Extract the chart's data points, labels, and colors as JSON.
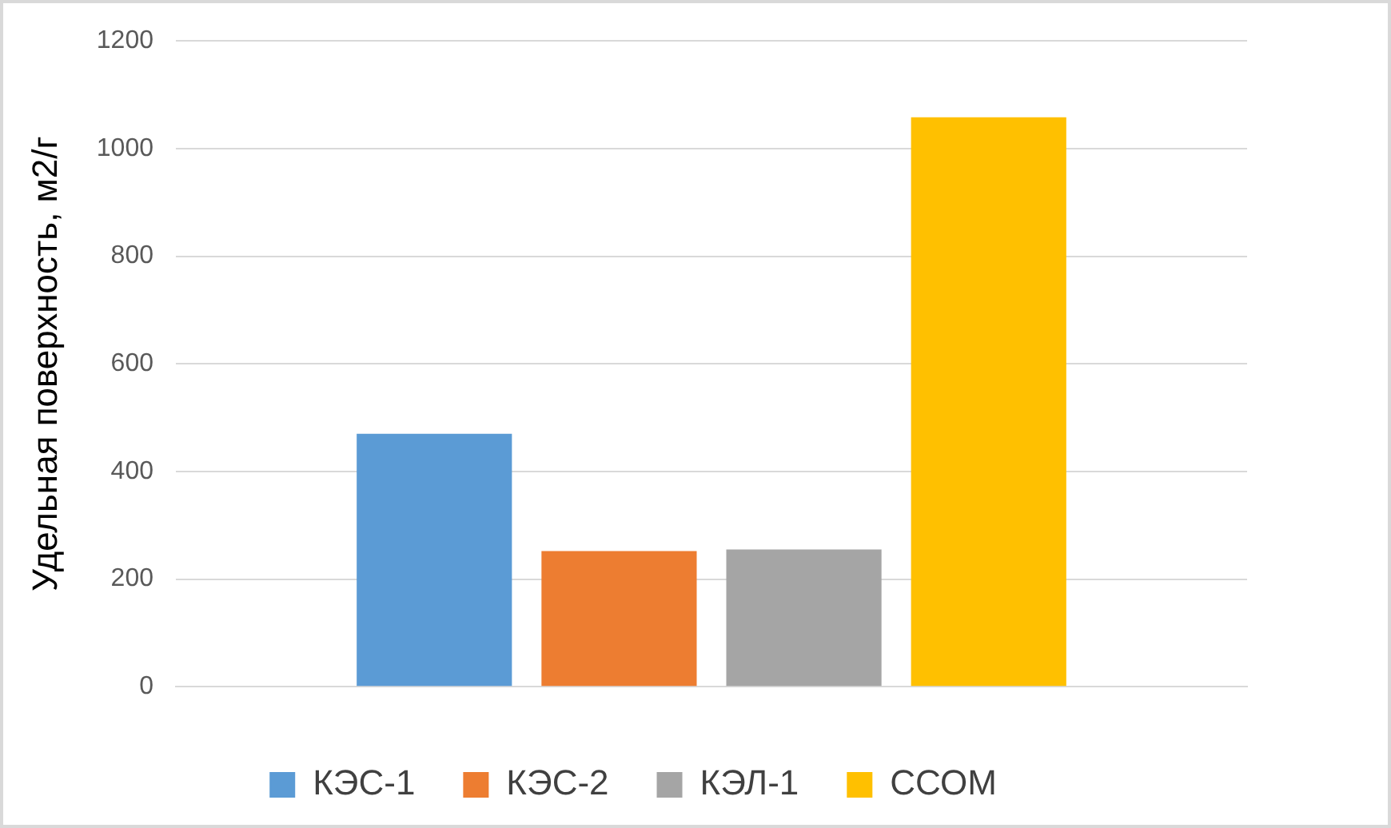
{
  "chart_data": {
    "type": "bar",
    "ylabel": "Удельная поверхность, м2/г",
    "categories": [
      null
    ],
    "series": [
      {
        "name": "КЭС-1",
        "color": "#5b9bd5",
        "values": [
          470
        ]
      },
      {
        "name": "КЭС-2",
        "color": "#ed7d31",
        "values": [
          252
        ]
      },
      {
        "name": "КЭЛ-1",
        "color": "#a5a5a5",
        "values": [
          255
        ]
      },
      {
        "name": "ССОМ",
        "color": "#ffc000",
        "values": [
          1058
        ]
      }
    ],
    "ylim": [
      0,
      1200
    ],
    "yticks": [
      0,
      200,
      400,
      600,
      800,
      1000,
      1200
    ],
    "grid": "y",
    "legend": "bottom"
  }
}
